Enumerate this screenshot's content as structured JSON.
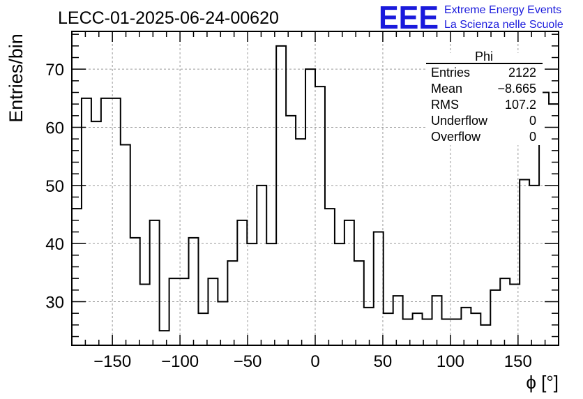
{
  "logo": {
    "mark": "EEE",
    "line1": "Extreme Energy Events",
    "line2": "La Scienza nelle Scuole",
    "color": "#1a1adc"
  },
  "stats": {
    "title": "Phi",
    "rows": [
      {
        "label": "Entries",
        "value": "2122"
      },
      {
        "label": "Mean",
        "value": "−8.665"
      },
      {
        "label": "RMS",
        "value": "107.2"
      },
      {
        "label": "Underflow",
        "value": "0"
      },
      {
        "label": "Overflow",
        "value": "0"
      }
    ]
  },
  "chart_data": {
    "type": "bar",
    "title": "LECC-01-2025-06-24-00620",
    "xlabel": "ϕ [°]",
    "ylabel": "Entries/bin",
    "xlim": [
      -180,
      180
    ],
    "ylim": [
      22.5,
      76.5
    ],
    "bin_width": 7.2,
    "grid": true,
    "xticks": [
      -150,
      -100,
      -50,
      0,
      50,
      100,
      150
    ],
    "xtick_labels": [
      "−150",
      "−100",
      "−50",
      "0",
      "50",
      "100",
      "150"
    ],
    "yticks": [
      30,
      40,
      50,
      60,
      70
    ],
    "ytick_labels": [
      "30",
      "40",
      "50",
      "60",
      "70"
    ],
    "values": [
      46,
      65,
      61,
      65,
      65,
      57,
      41,
      33,
      44,
      25,
      34,
      34,
      41,
      28,
      34,
      30,
      37,
      44,
      40,
      50,
      40,
      74,
      62,
      58,
      70,
      67,
      46,
      40,
      44,
      37,
      29,
      42,
      28,
      31,
      27,
      28,
      27,
      31,
      27,
      27,
      29,
      28,
      26,
      32,
      34,
      33,
      51,
      50,
      66,
      64
    ],
    "series_color": "#000000"
  }
}
